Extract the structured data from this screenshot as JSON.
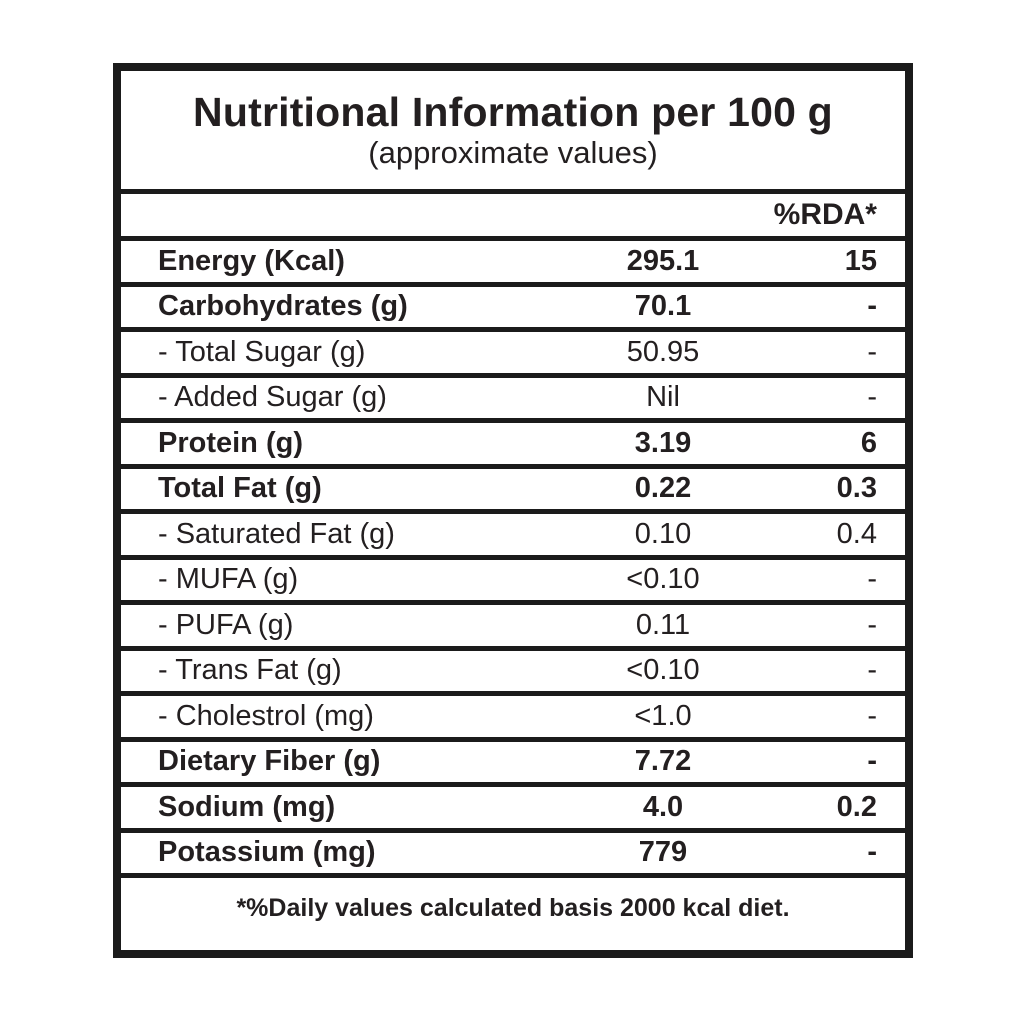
{
  "table": {
    "title": "Nutritional Information per 100 g",
    "subtitle": "(approximate values)",
    "rda_header": "%RDA*",
    "rows": [
      {
        "label": "Energy (Kcal)",
        "value": "295.1",
        "rda": "15",
        "emphasis": true
      },
      {
        "label": "Carbohydrates (g)",
        "value": "70.1",
        "rda": "-",
        "emphasis": true
      },
      {
        "label": "- Total Sugar (g)",
        "value": "50.95",
        "rda": "-",
        "emphasis": false
      },
      {
        "label": "- Added Sugar (g)",
        "value": "Nil",
        "rda": "-",
        "emphasis": false
      },
      {
        "label": "Protein (g)",
        "value": "3.19",
        "rda": "6",
        "emphasis": true
      },
      {
        "label": "Total Fat (g)",
        "value": "0.22",
        "rda": "0.3",
        "emphasis": true
      },
      {
        "label": "- Saturated Fat (g)",
        "value": "0.10",
        "rda": "0.4",
        "emphasis": false
      },
      {
        "label": "- MUFA (g)",
        "value": "<0.10",
        "rda": "-",
        "emphasis": false
      },
      {
        "label": "- PUFA (g)",
        "value": "0.11",
        "rda": "-",
        "emphasis": false
      },
      {
        "label": "- Trans Fat (g)",
        "value": "<0.10",
        "rda": "-",
        "emphasis": false
      },
      {
        "label": "- Cholestrol (mg)",
        "value": "<1.0",
        "rda": "-",
        "emphasis": false
      },
      {
        "label": "Dietary Fiber (g)",
        "value": "7.72",
        "rda": "-",
        "emphasis": true
      },
      {
        "label": "Sodium (mg)",
        "value": "4.0",
        "rda": "0.2",
        "emphasis": true
      },
      {
        "label": "Potassium (mg)",
        "value": "779",
        "rda": "-",
        "emphasis": true
      }
    ],
    "footnote": "*%Daily values calculated basis 2000 kcal diet.",
    "colors": {
      "text": "#231f20",
      "border": "#1b1b1b",
      "background": "#ffffff"
    }
  }
}
